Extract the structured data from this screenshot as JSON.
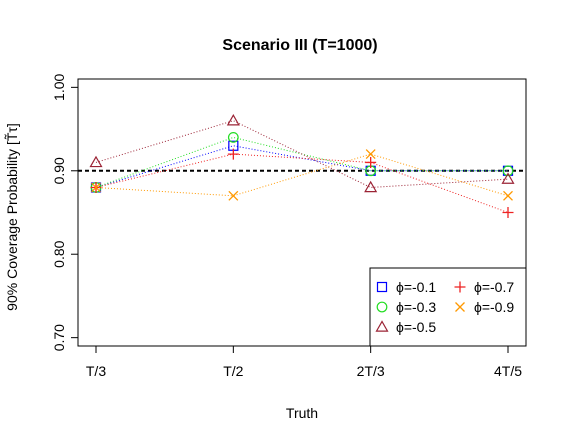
{
  "chart_data": {
    "type": "line",
    "title": "Scenario III (T=1000)",
    "xlabel": "Truth",
    "ylabel": "90% Coverage Probability [T̃τ]",
    "categories": [
      "T/3",
      "T/2",
      "2T/3",
      "4T/5"
    ],
    "yticks": [
      "0.70",
      "0.80",
      "0.90",
      "1.00"
    ],
    "ylim": [
      0.69,
      1.01
    ],
    "reference_line": 0.9,
    "series": [
      {
        "name": "ϕ=-0.1",
        "values": [
          0.88,
          0.93,
          0.9,
          0.9
        ],
        "color": "#0000ff",
        "marker": "square"
      },
      {
        "name": "ϕ=-0.3",
        "values": [
          0.88,
          0.94,
          0.9,
          0.9
        ],
        "color": "#22dd22",
        "marker": "circle"
      },
      {
        "name": "ϕ=-0.5",
        "values": [
          0.91,
          0.96,
          0.88,
          0.89
        ],
        "color": "#9b2335",
        "marker": "triangle"
      },
      {
        "name": "ϕ=-0.7",
        "values": [
          0.88,
          0.92,
          0.91,
          0.85
        ],
        "color": "#ee2222",
        "marker": "plus"
      },
      {
        "name": "ϕ=-0.9",
        "values": [
          0.88,
          0.87,
          0.92,
          0.87
        ],
        "color": "#ff9900",
        "marker": "cross"
      }
    ],
    "legend_position": "bottom-right",
    "legend_layout": [
      [
        0,
        3
      ],
      [
        1,
        4
      ],
      [
        2
      ]
    ]
  }
}
